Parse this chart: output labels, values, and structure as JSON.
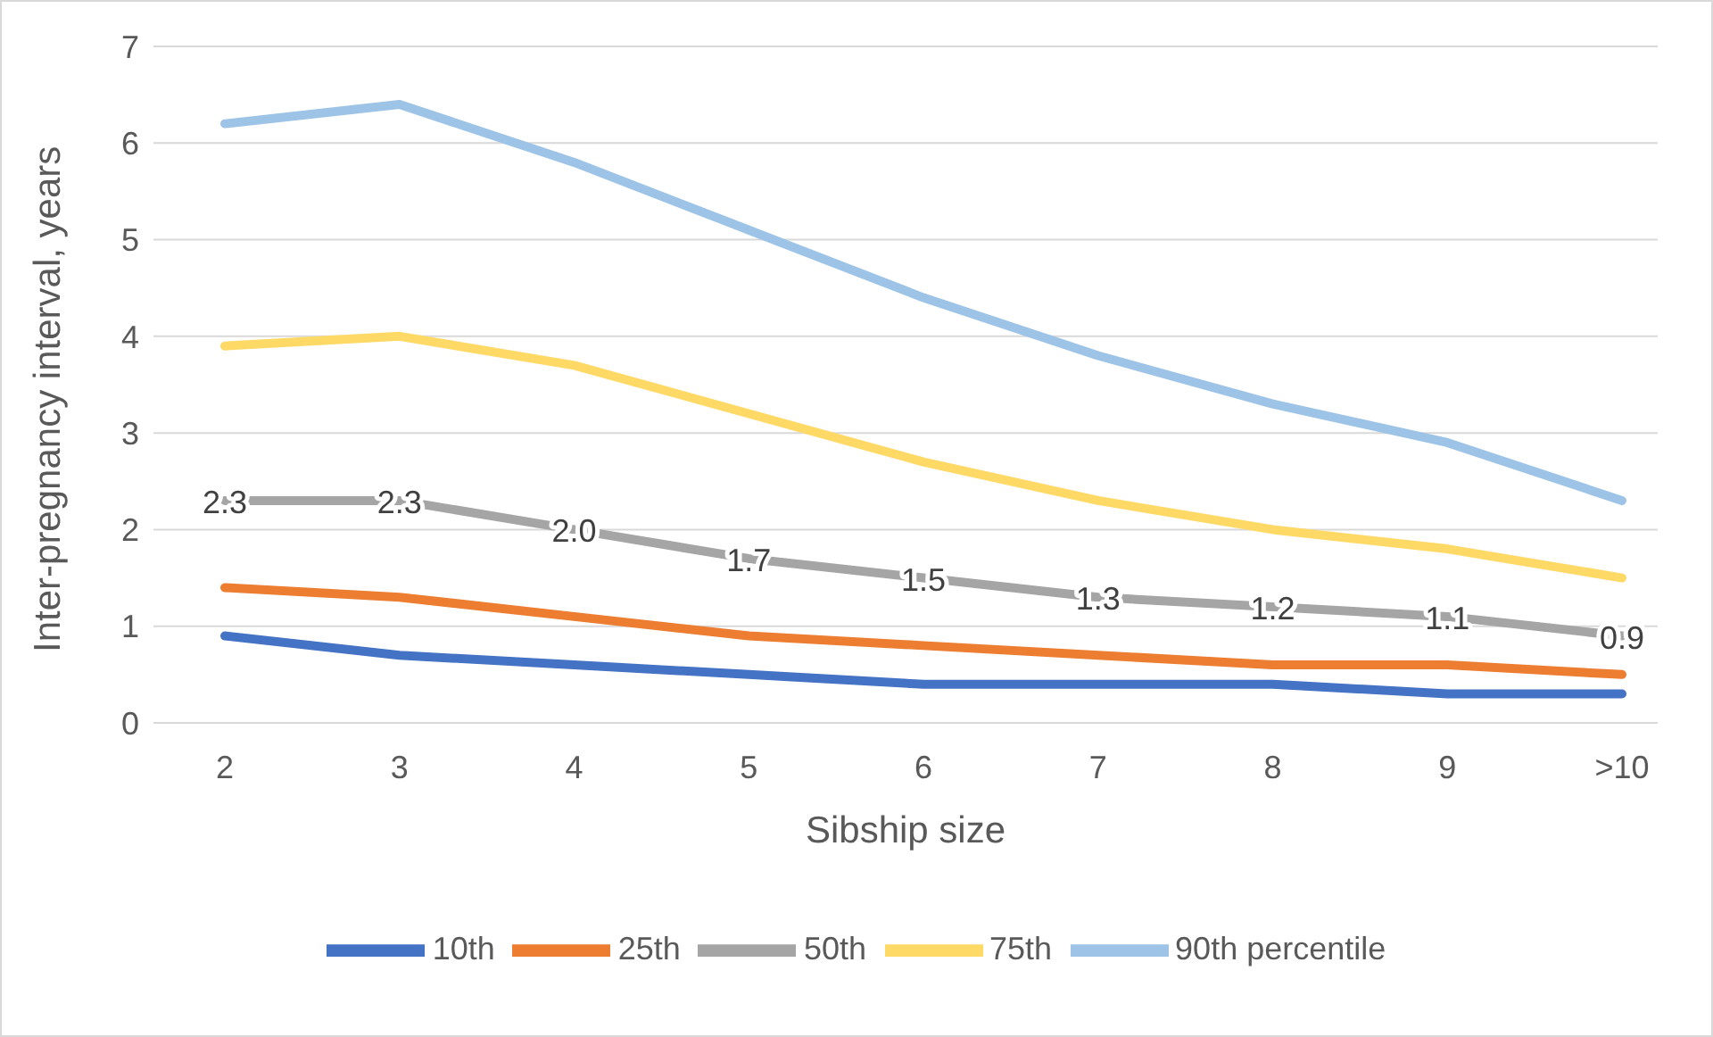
{
  "chart_data": {
    "type": "line",
    "xlabel": "Sibship size",
    "ylabel": "Inter-pregnancy interval, years",
    "categories": [
      "2",
      "3",
      "4",
      "5",
      "6",
      "7",
      "8",
      "9",
      ">10"
    ],
    "series": [
      {
        "name": "10th",
        "color": "#4472c4",
        "values": [
          0.9,
          0.7,
          0.6,
          0.5,
          0.4,
          0.4,
          0.4,
          0.3,
          0.3
        ]
      },
      {
        "name": "25th",
        "color": "#ed7d31",
        "values": [
          1.4,
          1.3,
          1.1,
          0.9,
          0.8,
          0.7,
          0.6,
          0.6,
          0.5
        ]
      },
      {
        "name": "50th",
        "color": "#a5a5a5",
        "values": [
          2.3,
          2.3,
          2.0,
          1.7,
          1.5,
          1.3,
          1.2,
          1.1,
          0.9
        ],
        "value_labels": [
          "2.3",
          "2.3",
          "2.0",
          "1.7",
          "1.5",
          "1.3",
          "1.2",
          "1.1",
          "0.9"
        ]
      },
      {
        "name": "75th",
        "color": "#ffd966",
        "values": [
          3.9,
          4.0,
          3.7,
          3.2,
          2.7,
          2.3,
          2.0,
          1.8,
          1.5
        ]
      },
      {
        "name": "90th percentile",
        "color": "#9dc3e6",
        "values": [
          6.2,
          6.4,
          5.8,
          5.1,
          4.4,
          3.8,
          3.3,
          2.9,
          2.3
        ]
      }
    ],
    "ylim": [
      0,
      7
    ],
    "yticks": [
      0,
      1,
      2,
      3,
      4,
      5,
      6,
      7
    ],
    "grid": "y",
    "legend": "bottom",
    "marker": "none",
    "line_style": "solid"
  }
}
